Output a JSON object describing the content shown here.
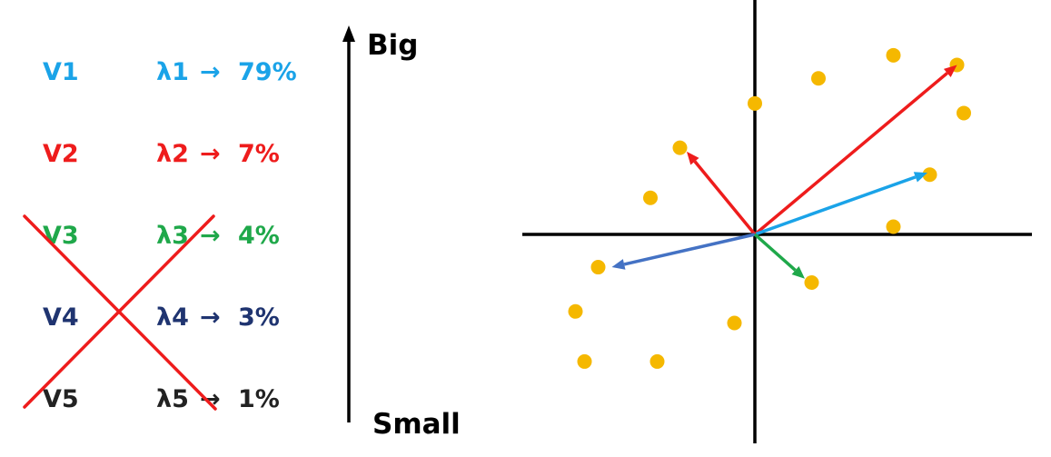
{
  "components": [
    {
      "vector": "V1",
      "eigenvalue": "λ1",
      "arrow": "→",
      "percent": "79%",
      "color": "#1aa3e8",
      "kept": true
    },
    {
      "vector": "V2",
      "eigenvalue": "λ2",
      "arrow": "→",
      "percent": "7%",
      "color": "#ee1c1c",
      "kept": true
    },
    {
      "vector": "V3",
      "eigenvalue": "λ3",
      "arrow": "→",
      "percent": "4%",
      "color": "#1fa84a",
      "kept": false
    },
    {
      "vector": "V4",
      "eigenvalue": "λ4",
      "arrow": "→",
      "percent": "3%",
      "color": "#1f3470",
      "kept": false
    },
    {
      "vector": "V5",
      "eigenvalue": "λ5",
      "arrow": "→",
      "percent": "1%",
      "color": "#222222",
      "kept": false
    }
  ],
  "scale": {
    "top_label": "Big",
    "bottom_label": "Small"
  },
  "cross_out_color": "#ee1c1c",
  "scatter": {
    "point_color": "#f5b800",
    "axis_color": "#000000",
    "points": [
      [
        -0.33,
        0.45
      ],
      [
        -0.46,
        0.19
      ],
      [
        -0.69,
        -0.17
      ],
      [
        -0.79,
        -0.4
      ],
      [
        -0.75,
        -0.66
      ],
      [
        -0.43,
        -0.66
      ],
      [
        -0.09,
        -0.46
      ],
      [
        0.25,
        -0.25
      ],
      [
        0.61,
        0.04
      ],
      [
        0.77,
        0.31
      ],
      [
        0.92,
        0.63
      ],
      [
        0.89,
        0.88
      ],
      [
        0.61,
        0.93
      ],
      [
        0.28,
        0.81
      ],
      [
        0.0,
        0.68
      ]
    ],
    "vectors": [
      {
        "to": [
          0.89,
          0.88
        ],
        "color": "#ee1c1c"
      },
      {
        "to": [
          0.76,
          0.32
        ],
        "color": "#1aa3e8"
      },
      {
        "to": [
          -0.3,
          0.43
        ],
        "color": "#ee1c1c"
      },
      {
        "to": [
          -0.63,
          -0.17
        ],
        "color": "#4472c4"
      },
      {
        "to": [
          0.22,
          -0.23
        ],
        "color": "#1fa84a"
      }
    ]
  }
}
